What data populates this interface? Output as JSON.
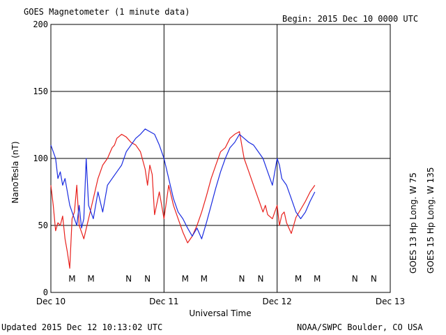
{
  "header": {
    "title": "GOES Magnetometer (1 minute data)",
    "begin": "Begin:  2015 Dec 10 0000 UTC"
  },
  "footer": {
    "updated": "Updated 2015 Dec 12 10:13:02 UTC",
    "credit": "NOAA/SWPC Boulder, CO USA"
  },
  "chart_data": {
    "type": "line",
    "ylabel": "NanoTesla (nT)",
    "xlabel": "Universal Time",
    "ylim": [
      0,
      200
    ],
    "xlim": [
      0,
      72
    ],
    "x_unit": "hours since 2015 Dec 10 0000 UTC",
    "yticks": [
      0,
      50,
      100,
      150,
      200
    ],
    "xticks": [
      {
        "x": 0,
        "label": "Dec 10"
      },
      {
        "x": 24,
        "label": "Dec 11"
      },
      {
        "x": 48,
        "label": "Dec 12"
      },
      {
        "x": 72,
        "label": "Dec 13"
      }
    ],
    "grid": true,
    "series": [
      {
        "name": "GOES 13 Hp  Long. W 75",
        "color": "#e8201c",
        "x": [
          0,
          0.5,
          1,
          1.5,
          2,
          2.5,
          3,
          3.5,
          4,
          4.5,
          5,
          5.5,
          6,
          6.5,
          7,
          8,
          9,
          10,
          11,
          12,
          13,
          13.5,
          14,
          15,
          16,
          17,
          18,
          19,
          20,
          20.5,
          21,
          21.5,
          22,
          23,
          23.5,
          24,
          25,
          26,
          27,
          28,
          29,
          30,
          31,
          32,
          33,
          34,
          35,
          36,
          37,
          38,
          39,
          40,
          40.5,
          41,
          42,
          43,
          44,
          45,
          45.5,
          46,
          47,
          48,
          48.5,
          49,
          49.5,
          50,
          51,
          52,
          53,
          54,
          55,
          56
        ],
        "y": [
          80,
          65,
          46,
          52,
          50,
          57,
          40,
          30,
          18,
          55,
          60,
          80,
          50,
          45,
          40,
          55,
          70,
          85,
          95,
          100,
          108,
          110,
          115,
          118,
          116,
          112,
          110,
          105,
          92,
          80,
          95,
          88,
          58,
          75,
          65,
          55,
          80,
          65,
          55,
          45,
          37,
          42,
          50,
          60,
          72,
          85,
          95,
          105,
          108,
          115,
          118,
          120,
          110,
          100,
          90,
          80,
          70,
          60,
          65,
          58,
          55,
          65,
          50,
          58,
          60,
          52,
          44,
          56,
          62,
          68,
          75,
          80
        ]
      },
      {
        "name": "GOES 15 Hp  Long. W 135",
        "color": "#1a2ce0",
        "x": [
          0,
          0.5,
          1,
          1.5,
          2,
          2.5,
          3,
          4,
          5,
          5.5,
          6,
          6.5,
          7,
          7.5,
          8,
          9,
          10,
          11,
          12,
          13,
          14,
          15,
          16,
          17,
          18,
          19,
          20,
          21,
          22,
          23,
          24,
          25,
          26,
          27,
          28,
          29,
          30,
          31,
          32,
          33,
          34,
          35,
          36,
          37,
          38,
          39,
          40,
          41,
          42,
          43,
          44,
          45,
          46,
          47,
          48,
          48.5,
          49,
          50,
          51,
          52,
          53,
          54,
          55,
          56
        ],
        "y": [
          110,
          105,
          100,
          85,
          90,
          80,
          85,
          65,
          55,
          50,
          65,
          48,
          55,
          100,
          65,
          55,
          75,
          60,
          80,
          85,
          90,
          95,
          105,
          110,
          115,
          118,
          122,
          120,
          118,
          110,
          100,
          85,
          70,
          60,
          55,
          48,
          42,
          48,
          40,
          52,
          65,
          78,
          90,
          100,
          108,
          112,
          118,
          115,
          112,
          110,
          105,
          100,
          90,
          80,
          100,
          95,
          85,
          80,
          70,
          60,
          55,
          60,
          68,
          75
        ]
      }
    ],
    "markers": [
      {
        "label": "M",
        "x": 4.5,
        "color": "#e8201c"
      },
      {
        "label": "M",
        "x": 8.5,
        "color": "#1a2ce0"
      },
      {
        "label": "N",
        "x": 16.5,
        "color": "#e8201c"
      },
      {
        "label": "N",
        "x": 20.5,
        "color": "#1a2ce0"
      },
      {
        "label": "M",
        "x": 28.5,
        "color": "#e8201c"
      },
      {
        "label": "M",
        "x": 32.5,
        "color": "#1a2ce0"
      },
      {
        "label": "N",
        "x": 40.5,
        "color": "#e8201c"
      },
      {
        "label": "N",
        "x": 44.5,
        "color": "#1a2ce0"
      },
      {
        "label": "M",
        "x": 52.5,
        "color": "#e8201c"
      },
      {
        "label": "M",
        "x": 56.5,
        "color": "#1a2ce0"
      },
      {
        "label": "N",
        "x": 64.5,
        "color": "#e8201c"
      },
      {
        "label": "N",
        "x": 68.5,
        "color": "#1a2ce0"
      }
    ]
  }
}
